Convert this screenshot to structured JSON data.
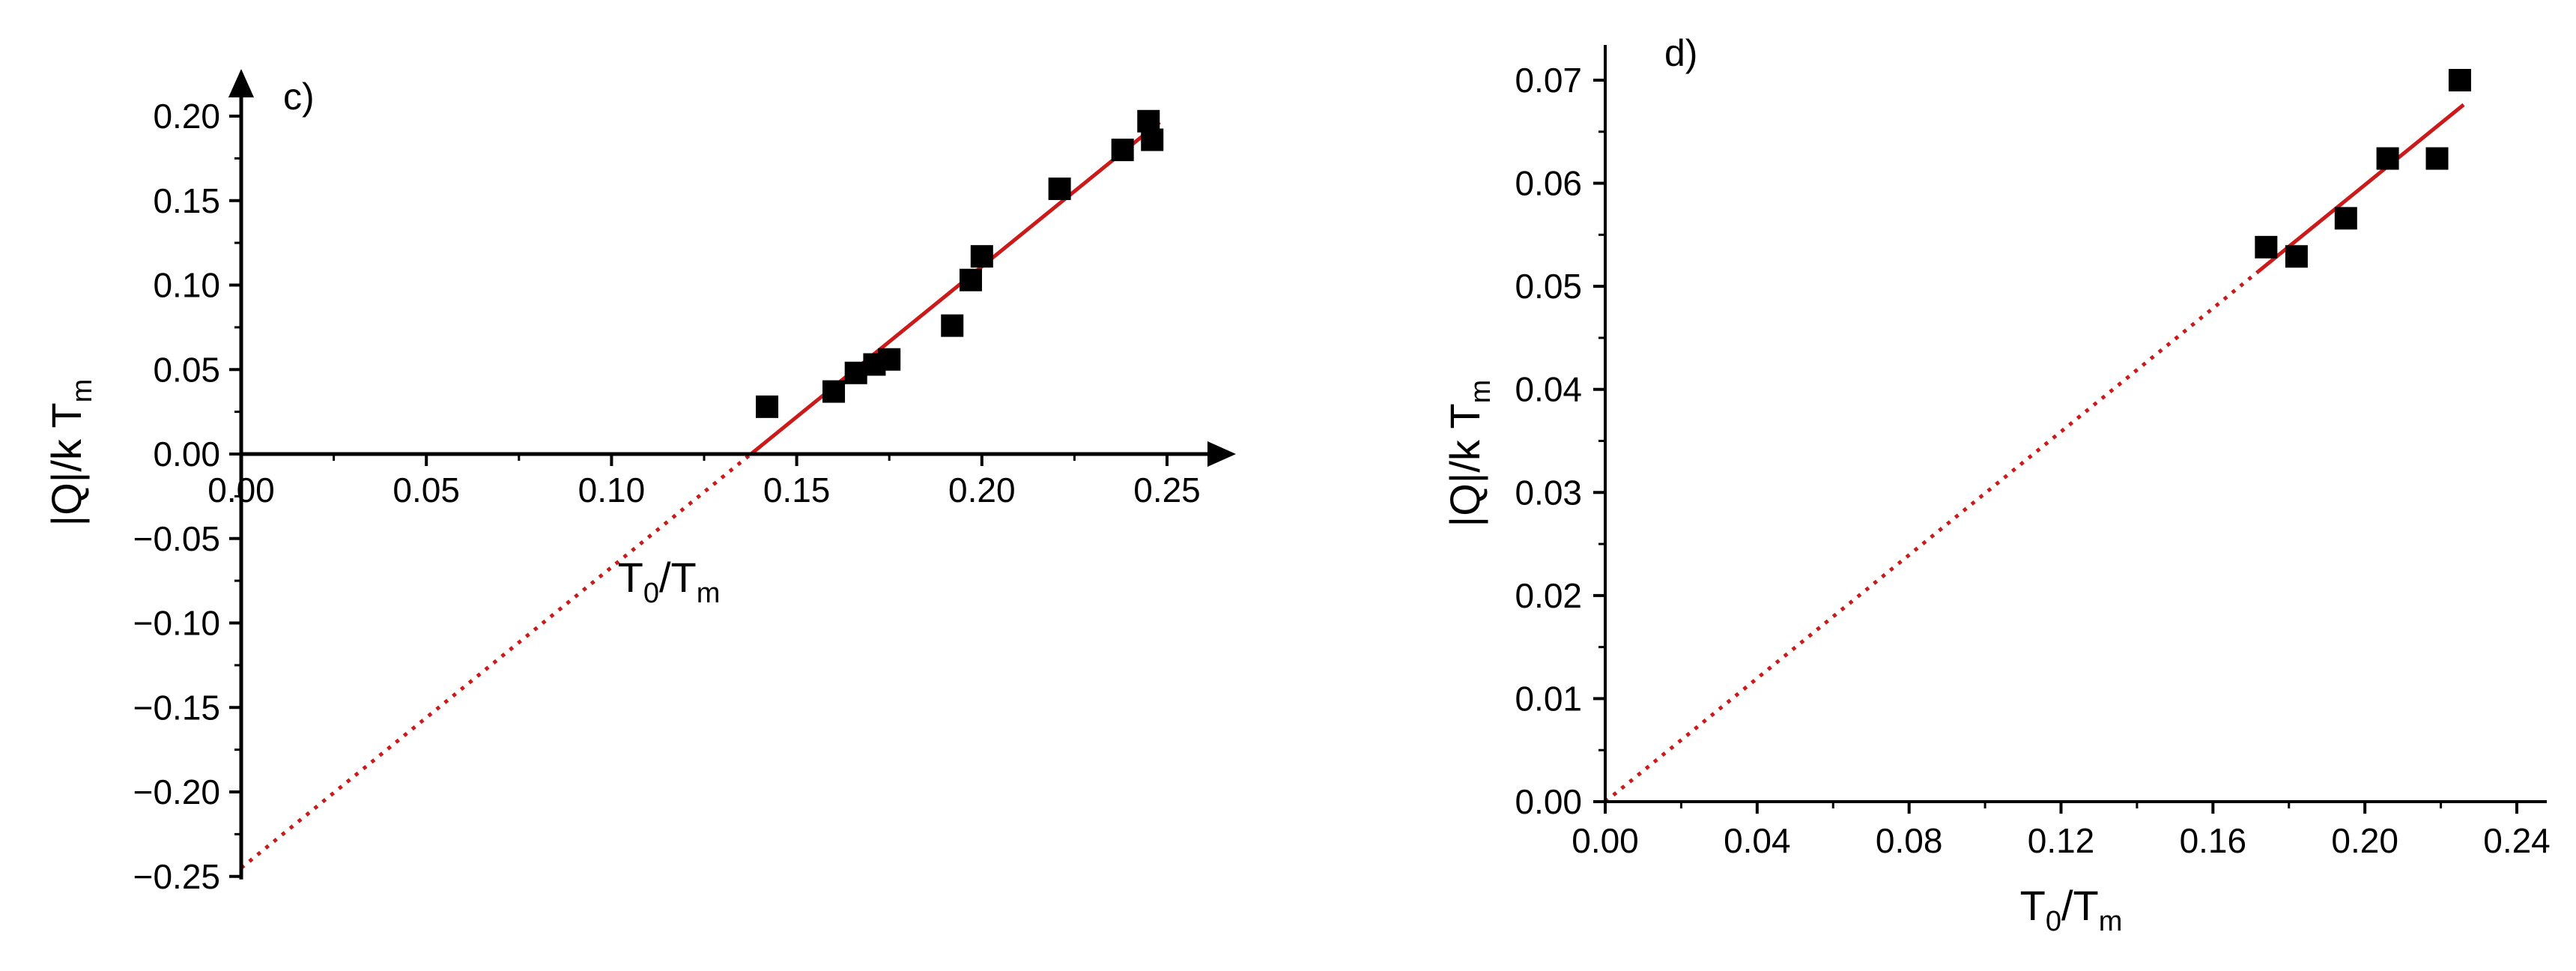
{
  "chart_data": [
    {
      "panel_label": "c)",
      "type": "scatter",
      "xlabel": {
        "main": "T",
        "sub1": "0",
        "sep": "/T",
        "sub2": "m"
      },
      "ylabel": {
        "main": "|Q|/k T",
        "sub": "m"
      },
      "xlim": [
        0.0,
        0.25
      ],
      "ylim": [
        -0.25,
        0.2
      ],
      "xticks": [
        "0.00",
        "0.05",
        "0.10",
        "0.15",
        "0.20",
        "0.25"
      ],
      "yticks": [
        "−0.25",
        "−0.20",
        "−0.15",
        "−0.10",
        "−0.05",
        "0.00",
        "0.05",
        "0.10",
        "0.15",
        "0.20"
      ],
      "axes_style": "arrows through origin",
      "points": [
        [
          0.142,
          0.028
        ],
        [
          0.16,
          0.037
        ],
        [
          0.166,
          0.048
        ],
        [
          0.171,
          0.053
        ],
        [
          0.175,
          0.056
        ],
        [
          0.192,
          0.076
        ],
        [
          0.197,
          0.103
        ],
        [
          0.2,
          0.117
        ],
        [
          0.221,
          0.157
        ],
        [
          0.238,
          0.18
        ],
        [
          0.245,
          0.197
        ],
        [
          0.246,
          0.186
        ]
      ],
      "fit_line": {
        "slope": 1.78,
        "intercept": -0.245,
        "solid_from": 0.1376,
        "solid_to": 0.248,
        "dotted_from": 0.0,
        "dotted_to": 0.1376,
        "color": "#cc1a1a"
      }
    },
    {
      "panel_label": "d)",
      "type": "scatter",
      "xlabel": {
        "main": "T",
        "sub1": "0",
        "sep": "/T",
        "sub2": "m"
      },
      "ylabel": {
        "main": "|Q|/k T",
        "sub": "m"
      },
      "xlim": [
        0.0,
        0.24
      ],
      "ylim": [
        0.0,
        0.07
      ],
      "xticks": [
        "0.00",
        "0.04",
        "0.08",
        "0.12",
        "0.16",
        "0.20",
        "0.24"
      ],
      "yticks": [
        "0.00",
        "0.01",
        "0.02",
        "0.03",
        "0.04",
        "0.05",
        "0.06",
        "0.07"
      ],
      "axes_style": "left and bottom axes with minor ticks",
      "points": [
        [
          0.174,
          0.0538
        ],
        [
          0.182,
          0.0529
        ],
        [
          0.195,
          0.0566
        ],
        [
          0.206,
          0.0624
        ],
        [
          0.219,
          0.0624
        ],
        [
          0.225,
          0.07
        ]
      ],
      "fit_line": {
        "slope": 0.2992,
        "intercept": 0.0,
        "solid_from": 0.172,
        "solid_to": 0.226,
        "dotted_from": 0.0,
        "dotted_to": 0.172,
        "color": "#cc1a1a"
      }
    }
  ]
}
